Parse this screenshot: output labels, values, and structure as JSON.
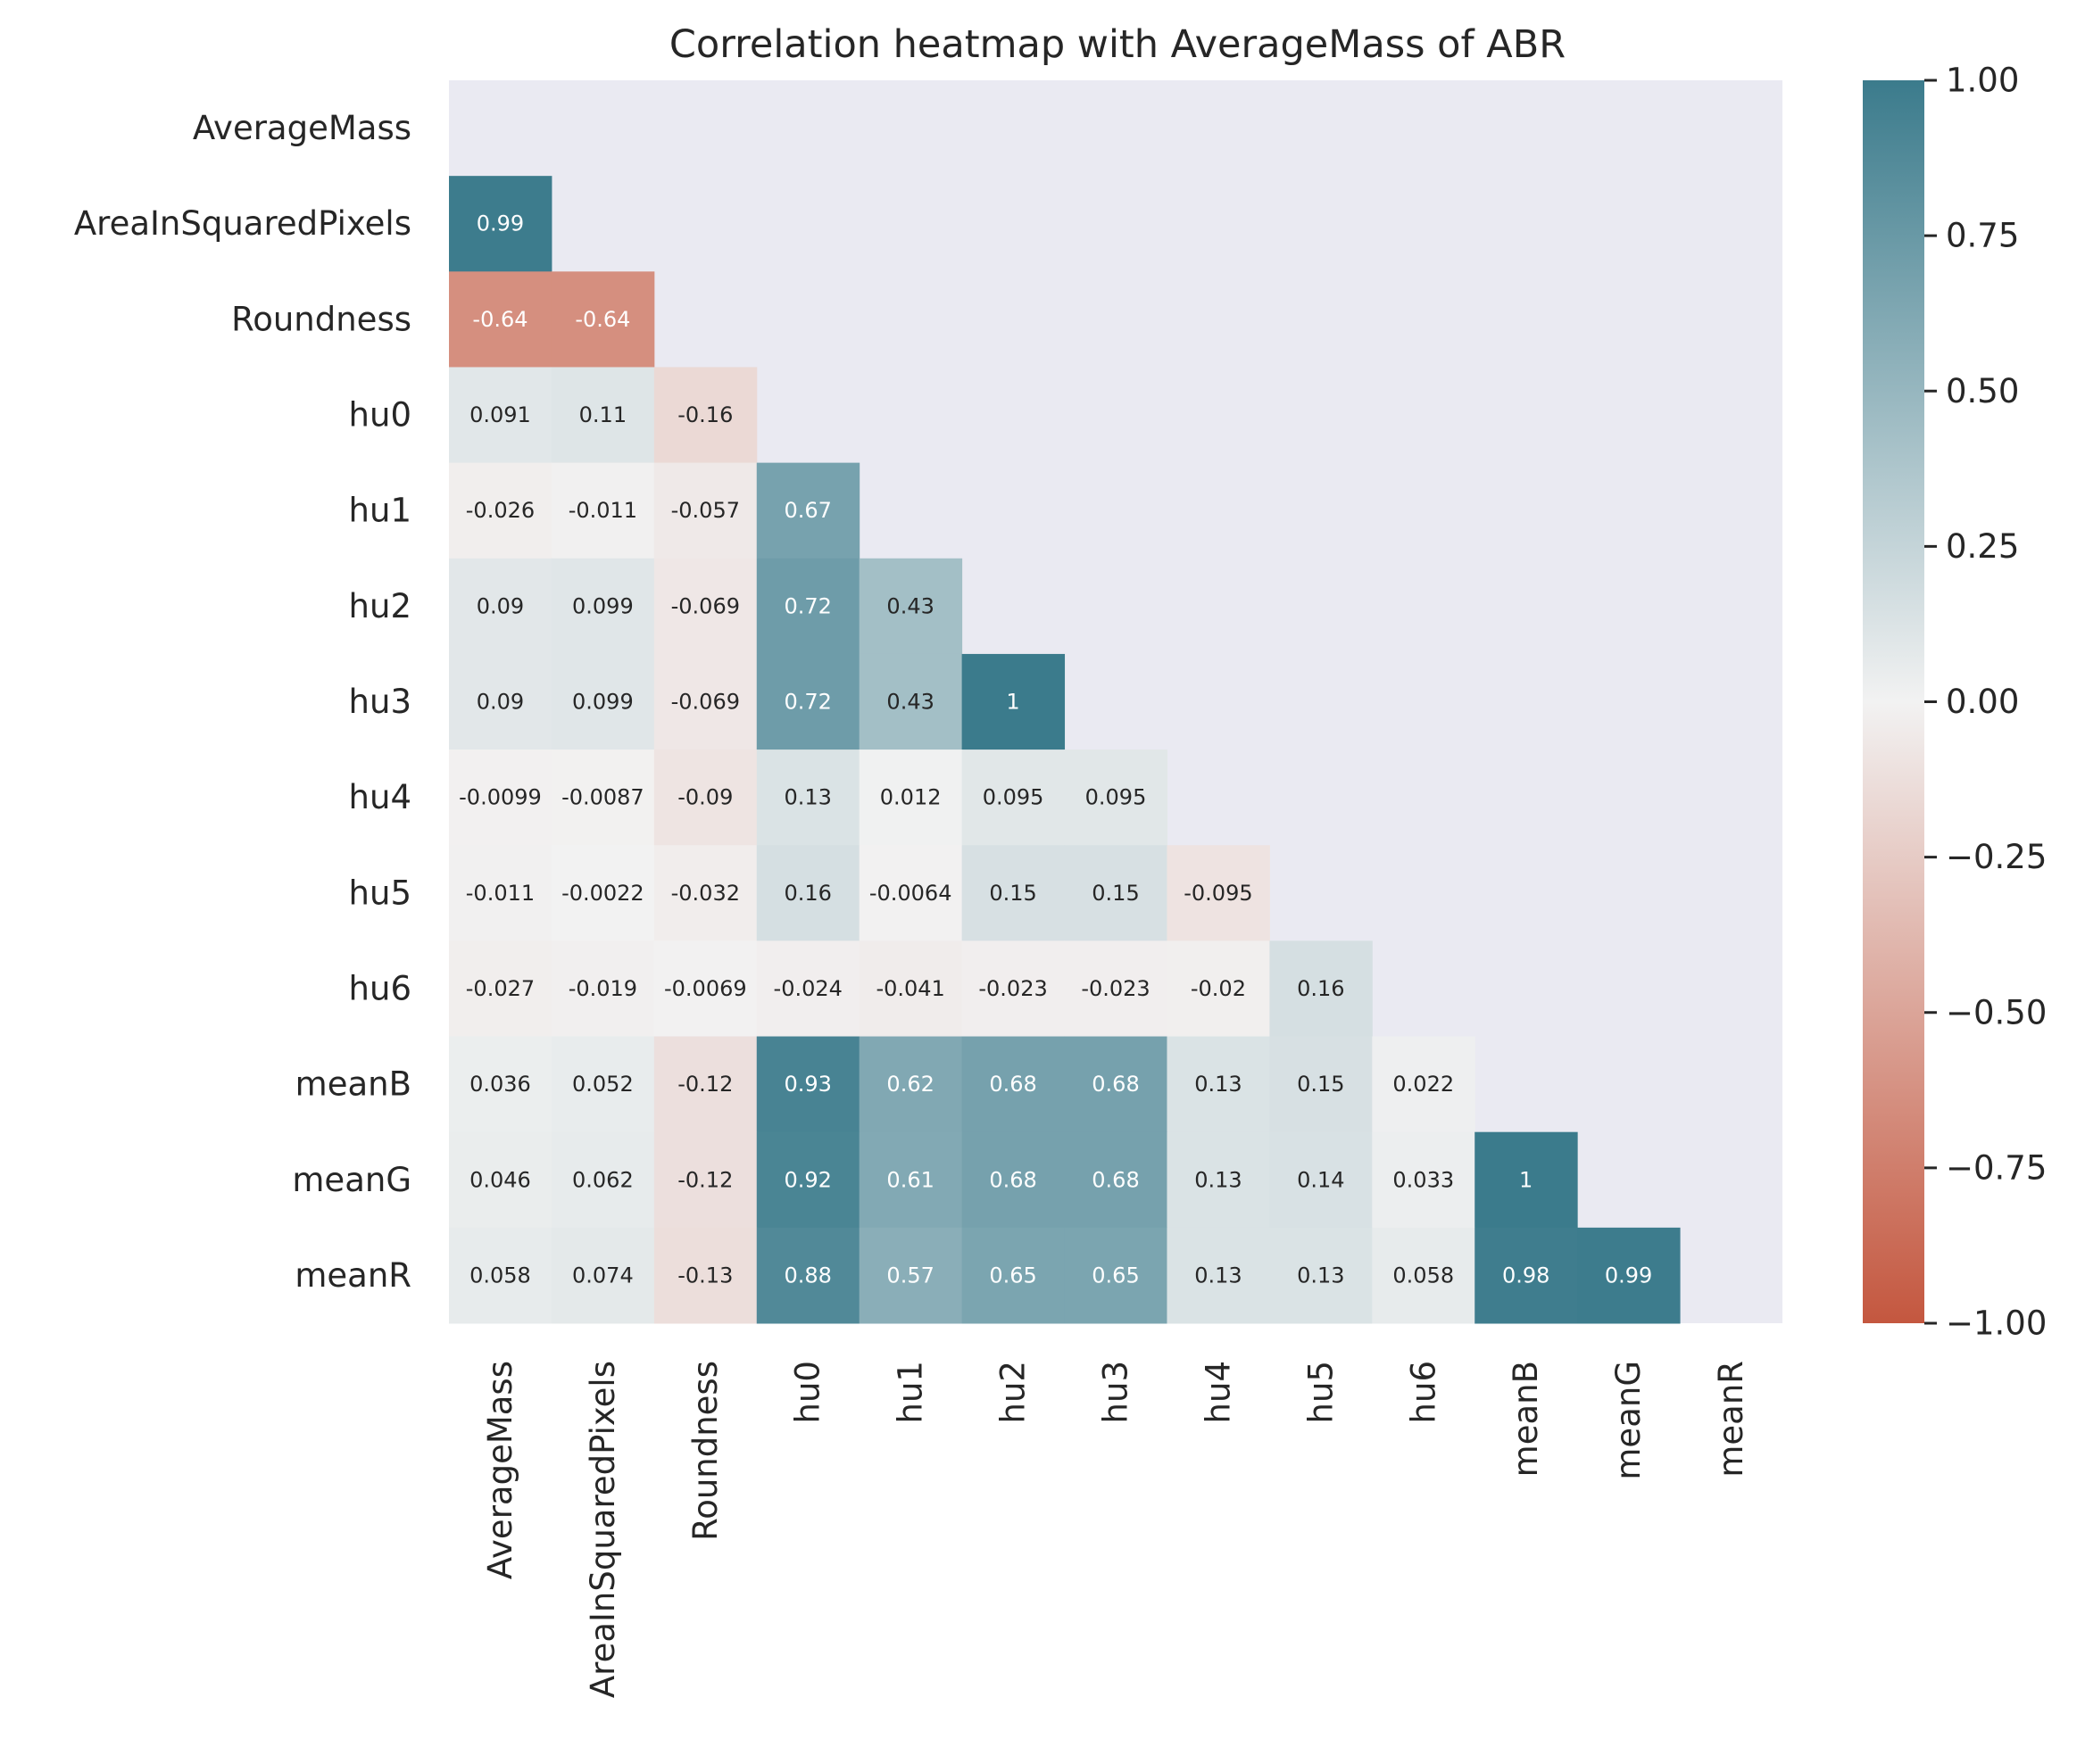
{
  "colors": {
    "negative": "#c4573f",
    "neutral": "#f2f2f2",
    "positive": "#3b7b8c",
    "background": "#eaeaf2"
  },
  "chart_data": {
    "type": "heatmap",
    "title": "Correlation heatmap with AverageMass of ABR",
    "labels": [
      "AverageMass",
      "AreaInSquaredPixels",
      "Roundness",
      "hu0",
      "hu1",
      "hu2",
      "hu3",
      "hu4",
      "hu5",
      "hu6",
      "meanB",
      "meanG",
      "meanR"
    ],
    "mask": "upper-triangle-including-diagonal",
    "value_range": [
      -1,
      1
    ],
    "colorbar_ticks": [
      "1.00",
      "0.75",
      "0.50",
      "0.25",
      "0.00",
      "−0.25",
      "−0.50",
      "−0.75",
      "−1.00"
    ],
    "colorbar_tick_values": [
      1,
      0.75,
      0.5,
      0.25,
      0,
      -0.25,
      -0.5,
      -0.75,
      -1
    ],
    "cells": [
      [],
      [
        {
          "v": 0.99,
          "t": "0.99"
        }
      ],
      [
        {
          "v": -0.64,
          "t": "-0.64"
        },
        {
          "v": -0.64,
          "t": "-0.64"
        }
      ],
      [
        {
          "v": 0.091,
          "t": "0.091"
        },
        {
          "v": 0.11,
          "t": "0.11"
        },
        {
          "v": -0.16,
          "t": "-0.16"
        }
      ],
      [
        {
          "v": -0.026,
          "t": "-0.026"
        },
        {
          "v": -0.011,
          "t": "-0.011"
        },
        {
          "v": -0.057,
          "t": "-0.057"
        },
        {
          "v": 0.67,
          "t": "0.67"
        }
      ],
      [
        {
          "v": 0.09,
          "t": "0.09"
        },
        {
          "v": 0.099,
          "t": "0.099"
        },
        {
          "v": -0.069,
          "t": "-0.069"
        },
        {
          "v": 0.72,
          "t": "0.72"
        },
        {
          "v": 0.43,
          "t": "0.43"
        }
      ],
      [
        {
          "v": 0.09,
          "t": "0.09"
        },
        {
          "v": 0.099,
          "t": "0.099"
        },
        {
          "v": -0.069,
          "t": "-0.069"
        },
        {
          "v": 0.72,
          "t": "0.72"
        },
        {
          "v": 0.43,
          "t": "0.43"
        },
        {
          "v": 1,
          "t": "1"
        }
      ],
      [
        {
          "v": -0.0099,
          "t": "-0.0099"
        },
        {
          "v": -0.0087,
          "t": "-0.0087"
        },
        {
          "v": -0.09,
          "t": "-0.09"
        },
        {
          "v": 0.13,
          "t": "0.13"
        },
        {
          "v": 0.012,
          "t": "0.012"
        },
        {
          "v": 0.095,
          "t": "0.095"
        },
        {
          "v": 0.095,
          "t": "0.095"
        }
      ],
      [
        {
          "v": -0.011,
          "t": "-0.011"
        },
        {
          "v": -0.0022,
          "t": "-0.0022"
        },
        {
          "v": -0.032,
          "t": "-0.032"
        },
        {
          "v": 0.16,
          "t": "0.16"
        },
        {
          "v": -0.0064,
          "t": "-0.0064"
        },
        {
          "v": 0.15,
          "t": "0.15"
        },
        {
          "v": 0.15,
          "t": "0.15"
        },
        {
          "v": -0.095,
          "t": "-0.095"
        }
      ],
      [
        {
          "v": -0.027,
          "t": "-0.027"
        },
        {
          "v": -0.019,
          "t": "-0.019"
        },
        {
          "v": -0.0069,
          "t": "-0.0069"
        },
        {
          "v": -0.024,
          "t": "-0.024"
        },
        {
          "v": -0.041,
          "t": "-0.041"
        },
        {
          "v": -0.023,
          "t": "-0.023"
        },
        {
          "v": -0.023,
          "t": "-0.023"
        },
        {
          "v": -0.02,
          "t": "-0.02"
        },
        {
          "v": 0.16,
          "t": "0.16"
        }
      ],
      [
        {
          "v": 0.036,
          "t": "0.036"
        },
        {
          "v": 0.052,
          "t": "0.052"
        },
        {
          "v": -0.12,
          "t": "-0.12"
        },
        {
          "v": 0.93,
          "t": "0.93"
        },
        {
          "v": 0.62,
          "t": "0.62"
        },
        {
          "v": 0.68,
          "t": "0.68"
        },
        {
          "v": 0.68,
          "t": "0.68"
        },
        {
          "v": 0.13,
          "t": "0.13"
        },
        {
          "v": 0.15,
          "t": "0.15"
        },
        {
          "v": 0.022,
          "t": "0.022"
        }
      ],
      [
        {
          "v": 0.046,
          "t": "0.046"
        },
        {
          "v": 0.062,
          "t": "0.062"
        },
        {
          "v": -0.12,
          "t": "-0.12"
        },
        {
          "v": 0.92,
          "t": "0.92"
        },
        {
          "v": 0.61,
          "t": "0.61"
        },
        {
          "v": 0.68,
          "t": "0.68"
        },
        {
          "v": 0.68,
          "t": "0.68"
        },
        {
          "v": 0.13,
          "t": "0.13"
        },
        {
          "v": 0.14,
          "t": "0.14"
        },
        {
          "v": 0.033,
          "t": "0.033"
        },
        {
          "v": 1,
          "t": "1"
        }
      ],
      [
        {
          "v": 0.058,
          "t": "0.058"
        },
        {
          "v": 0.074,
          "t": "0.074"
        },
        {
          "v": -0.13,
          "t": "-0.13"
        },
        {
          "v": 0.88,
          "t": "0.88"
        },
        {
          "v": 0.57,
          "t": "0.57"
        },
        {
          "v": 0.65,
          "t": "0.65"
        },
        {
          "v": 0.65,
          "t": "0.65"
        },
        {
          "v": 0.13,
          "t": "0.13"
        },
        {
          "v": 0.13,
          "t": "0.13"
        },
        {
          "v": 0.058,
          "t": "0.058"
        },
        {
          "v": 0.98,
          "t": "0.98"
        },
        {
          "v": 0.99,
          "t": "0.99"
        }
      ]
    ]
  }
}
